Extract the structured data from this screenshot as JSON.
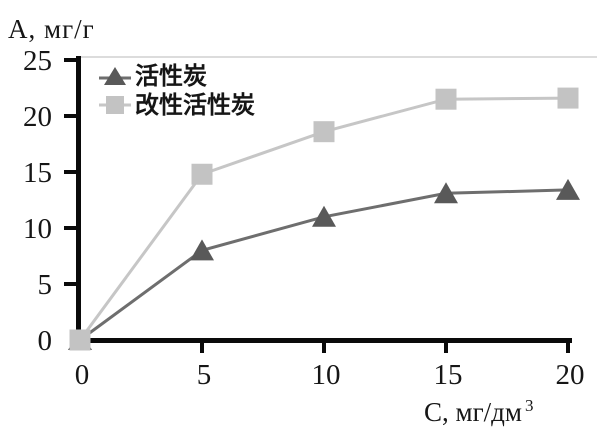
{
  "figure": {
    "background": "#ffffff",
    "axis_color": "#0a0a0a",
    "text_color": "#161616",
    "top_border_color": "#dcdcdc"
  },
  "chart_data": {
    "type": "line",
    "title": "",
    "ylabel": "А, мг/г",
    "xlabel": "С, мг/дм",
    "xlabel_superscript": "3",
    "xlim": [
      0,
      20
    ],
    "ylim": [
      0,
      25
    ],
    "x_ticks": [
      0,
      5,
      10,
      15,
      20
    ],
    "y_ticks": [
      0,
      5,
      10,
      15,
      20,
      25
    ],
    "grid": false,
    "legend_position": "top-left",
    "x": [
      0,
      5,
      10,
      15,
      20
    ],
    "series": [
      {
        "name": "活性炭",
        "marker": "triangle",
        "marker_color": "#595959",
        "line_color": "#6e6e6e",
        "values": [
          0,
          8,
          11,
          13.1,
          13.4
        ]
      },
      {
        "name": "改性活性炭",
        "marker": "square",
        "marker_color": "#c3c3c3",
        "line_color": "#c6c6c6",
        "values": [
          0,
          14.8,
          18.6,
          21.5,
          21.6
        ]
      }
    ]
  }
}
